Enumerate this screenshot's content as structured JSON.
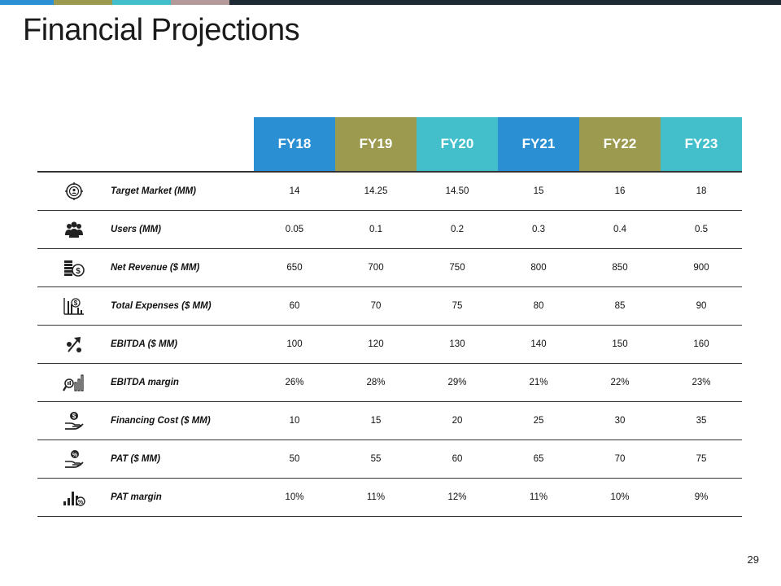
{
  "title": "Financial Projections",
  "page_number": "29",
  "colors": {
    "blue": "#2a8fd3",
    "olive": "#9c9a4f",
    "teal": "#43bfcc",
    "mauve": "#b39a99",
    "dark": "#1e2a33"
  },
  "columns": [
    "FY18",
    "FY19",
    "FY20",
    "FY21",
    "FY22",
    "FY23"
  ],
  "rows": [
    {
      "icon": "target-market-icon",
      "label": "Target Market (MM)",
      "values": [
        "14",
        "14.25",
        "14.50",
        "15",
        "16",
        "18"
      ]
    },
    {
      "icon": "users-icon",
      "label": "Users (MM)",
      "values": [
        "0.05",
        "0.1",
        "0.2",
        "0.3",
        "0.4",
        "0.5"
      ]
    },
    {
      "icon": "coins-dollar-icon",
      "label": "Net Revenue ($ MM)",
      "values": [
        "650",
        "700",
        "750",
        "800",
        "850",
        "900"
      ]
    },
    {
      "icon": "expense-chart-icon",
      "label": "Total Expenses ($ MM)",
      "values": [
        "60",
        "70",
        "75",
        "80",
        "85",
        "90"
      ]
    },
    {
      "icon": "percent-arrow-icon",
      "label": "EBITDA ($ MM)",
      "values": [
        "100",
        "120",
        "130",
        "140",
        "150",
        "160"
      ]
    },
    {
      "icon": "bar-magnifier-icon",
      "label": "EBITDA margin",
      "values": [
        "26%",
        "28%",
        "29%",
        "21%",
        "22%",
        "23%"
      ]
    },
    {
      "icon": "hand-dollar-icon",
      "label": "Financing Cost ($ MM)",
      "values": [
        "10",
        "15",
        "20",
        "25",
        "30",
        "35"
      ]
    },
    {
      "icon": "hand-percent-icon",
      "label": "PAT ($ MM)",
      "values": [
        "50",
        "55",
        "60",
        "65",
        "70",
        "75"
      ]
    },
    {
      "icon": "bar-percent-icon",
      "label": "PAT margin",
      "values": [
        "10%",
        "11%",
        "12%",
        "11%",
        "10%",
        "9%"
      ]
    }
  ]
}
